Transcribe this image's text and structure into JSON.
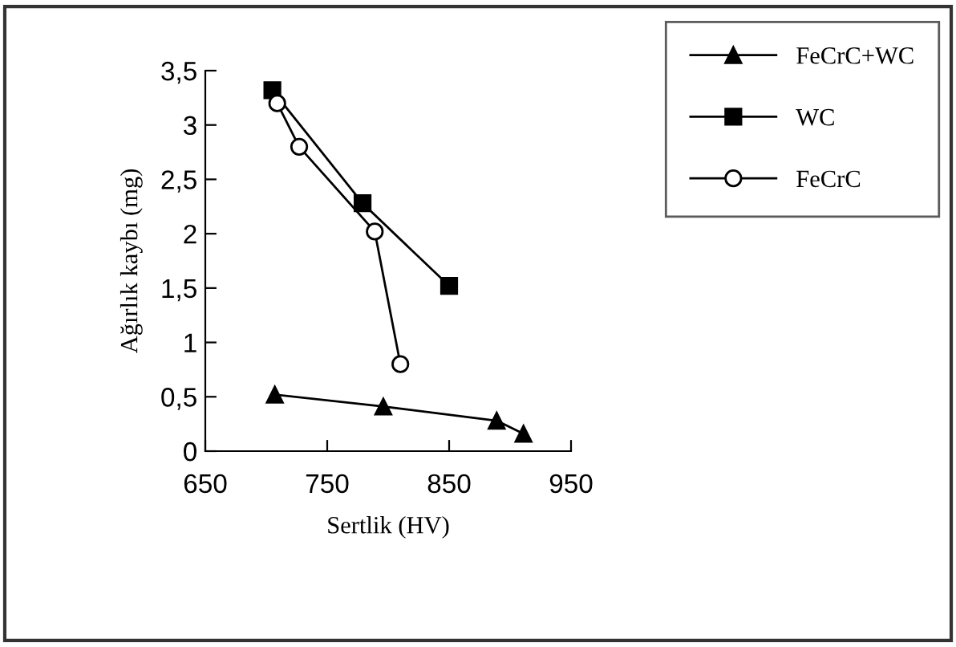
{
  "chart_data": {
    "type": "line",
    "xlabel": "Sertlik (HV)",
    "ylabel": "Ağırlık kaybı (mg)",
    "xlim": [
      650,
      950
    ],
    "xticks": [
      650,
      750,
      850,
      950
    ],
    "ylim": [
      0,
      3.5
    ],
    "yticks": [
      {
        "value": 0,
        "label": "0"
      },
      {
        "value": 0.5,
        "label": "0,5"
      },
      {
        "value": 1,
        "label": "1"
      },
      {
        "value": 1.5,
        "label": "1,5"
      },
      {
        "value": 2,
        "label": "2"
      },
      {
        "value": 2.5,
        "label": "2,5"
      },
      {
        "value": 3,
        "label": "3"
      },
      {
        "value": 3.5,
        "label": "3,5"
      }
    ],
    "grid": false,
    "legend": "top right",
    "line_style": "solid",
    "series": [
      {
        "name": "FeCrC+WC",
        "color": "#000000",
        "marker": "triangle",
        "x": [
          707,
          796,
          889,
          911
        ],
        "values": [
          0.52,
          0.41,
          0.28,
          0.16
        ]
      },
      {
        "name": "WC",
        "color": "#000000",
        "marker": "square",
        "x": [
          705,
          779,
          850
        ],
        "values": [
          3.32,
          2.28,
          1.52
        ]
      },
      {
        "name": "FeCrC",
        "color": "#000000",
        "marker": "circle",
        "x": [
          709,
          727,
          789,
          810
        ],
        "values": [
          3.2,
          2.8,
          2.02,
          0.8
        ]
      }
    ]
  }
}
